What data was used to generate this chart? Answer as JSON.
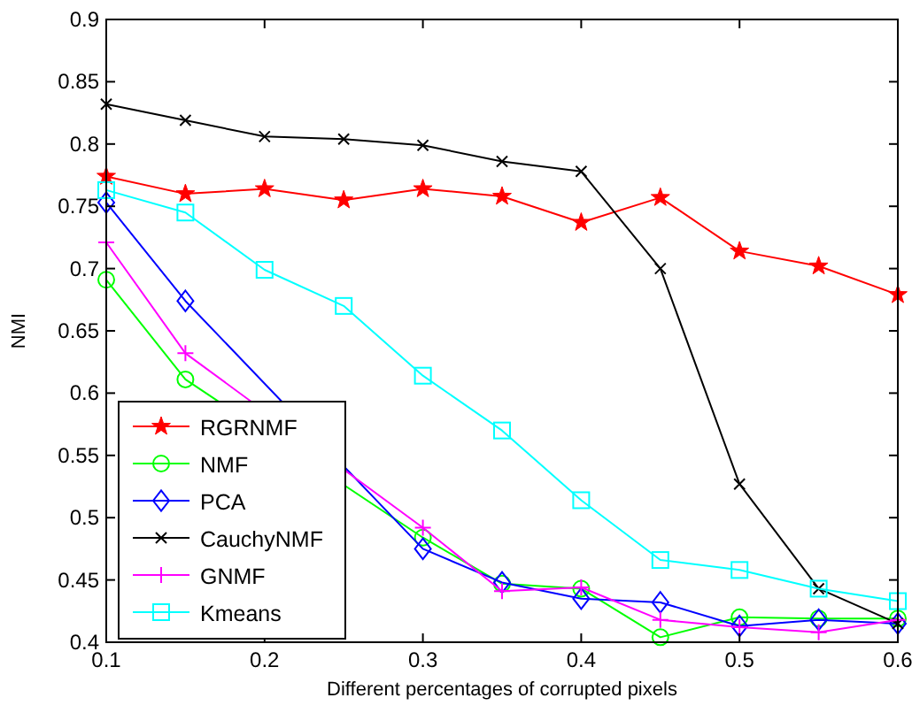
{
  "chart_data": {
    "type": "line",
    "xlabel": "Different percentages of corrupted pixels",
    "ylabel": "NMI",
    "x": [
      0.1,
      0.15,
      0.2,
      0.25,
      0.3,
      0.35,
      0.4,
      0.45,
      0.5,
      0.55,
      0.6
    ],
    "xlim": [
      0.1,
      0.6
    ],
    "xticks": [
      0.1,
      0.2,
      0.3,
      0.4,
      0.5,
      0.6
    ],
    "ylim": [
      0.4,
      0.9
    ],
    "yticks": [
      0.4,
      0.45,
      0.5,
      0.55,
      0.6,
      0.65,
      0.7,
      0.75,
      0.8,
      0.85,
      0.9
    ],
    "legend": "bottom left",
    "series": [
      {
        "name": "RGRNMF",
        "color": "#ff0000",
        "marker": "star",
        "values": [
          0.774,
          0.76,
          0.764,
          0.755,
          0.764,
          0.758,
          0.737,
          0.757,
          0.714,
          0.702,
          0.679
        ]
      },
      {
        "name": "NMF",
        "color": "#00ff00",
        "marker": "circle",
        "values": [
          0.691,
          0.611,
          null,
          null,
          0.484,
          0.447,
          0.443,
          0.404,
          0.42,
          0.419,
          0.419
        ]
      },
      {
        "name": "PCA",
        "color": "#0000ff",
        "marker": "diamond",
        "values": [
          0.753,
          0.674,
          null,
          null,
          0.475,
          0.448,
          0.435,
          0.432,
          0.413,
          0.418,
          0.415
        ]
      },
      {
        "name": "CauchyNMF",
        "color": "#000000",
        "marker": "cross",
        "values": [
          0.832,
          0.819,
          0.806,
          0.804,
          0.799,
          0.786,
          0.778,
          0.7,
          0.527,
          0.443,
          0.415
        ]
      },
      {
        "name": "GNMF",
        "color": "#ff00ff",
        "marker": "plus",
        "values": [
          0.721,
          0.632,
          null,
          null,
          0.492,
          0.441,
          0.444,
          0.418,
          0.412,
          0.408,
          0.418
        ]
      },
      {
        "name": "Kmeans",
        "color": "#00ffff",
        "marker": "square",
        "values": [
          0.763,
          0.745,
          0.699,
          0.67,
          0.614,
          0.57,
          0.514,
          0.466,
          0.458,
          0.443,
          0.433
        ]
      }
    ]
  }
}
